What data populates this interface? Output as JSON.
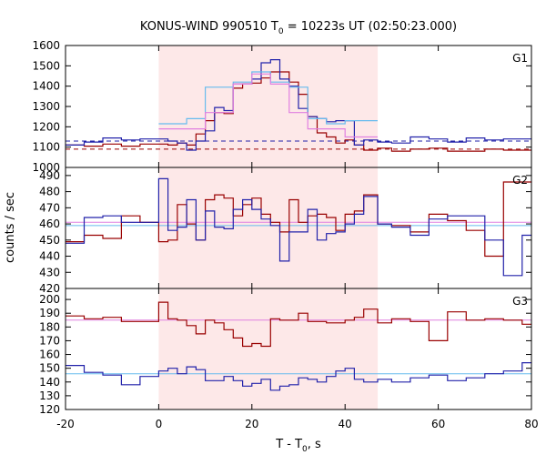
{
  "chart_data": {
    "type": "line",
    "title": "KONUS-WIND 990510 T",
    "title_sub": "0",
    "title_rest": " = 10223s UT (02:50:23.000)",
    "xlabel": "T - T",
    "xlabel_sub": "0",
    "xlabel_rest": ", s",
    "ylabel": "counts / sec",
    "xlim": [
      -20,
      80
    ],
    "x_ticks": [
      -20,
      0,
      20,
      40,
      60,
      80
    ],
    "shaded_interval": [
      0,
      47
    ],
    "colors": {
      "shade": "#fde8e8",
      "dark_red": "#990000",
      "blue": "#2222aa",
      "light_blue": "#66bbee",
      "pink": "#e080e0"
    },
    "bin_edges": [
      -20,
      -16,
      -12,
      -8,
      -4,
      0,
      2,
      4,
      6,
      8,
      10,
      12,
      14,
      16,
      18,
      20,
      22,
      24,
      26,
      28,
      30,
      32,
      34,
      36,
      38,
      40,
      42,
      44,
      47,
      50,
      54,
      58,
      62,
      66,
      70,
      74,
      78,
      80
    ],
    "panels": [
      {
        "label": "G1",
        "ylim": [
          1000,
          1600
        ],
        "y_ticks": [
          1000,
          1100,
          1200,
          1300,
          1400,
          1500,
          1600
        ],
        "series": [
          {
            "color": "dark_red",
            "values": [
              1110,
              1105,
              1115,
              1105,
              1115,
              1115,
              1110,
              1120,
              1110,
              1165,
              1230,
              1270,
              1265,
              1390,
              1410,
              1415,
              1440,
              1470,
              1470,
              1420,
              1360,
              1250,
              1170,
              1150,
              1120,
              1135,
              1110,
              1085,
              1095,
              1080,
              1090,
              1095,
              1080,
              1080,
              1090,
              1085,
              1085
            ]
          },
          {
            "color": "blue",
            "values": [
              1110,
              1125,
              1145,
              1135,
              1140,
              1140,
              1130,
              1120,
              1085,
              1130,
              1180,
              1295,
              1280,
              1410,
              1410,
              1435,
              1515,
              1530,
              1435,
              1400,
              1290,
              1250,
              1240,
              1225,
              1230,
              1230,
              1110,
              1135,
              1125,
              1120,
              1150,
              1140,
              1125,
              1145,
              1135,
              1140,
              1140
            ]
          },
          {
            "color": "light_blue",
            "values": [
              null,
              null,
              null,
              null,
              null,
              1215,
              1215,
              1215,
              1240,
              1240,
              1395,
              1395,
              1395,
              1420,
              1420,
              1470,
              1470,
              1420,
              1420,
              1395,
              1395,
              1240,
              1240,
              1215,
              1215,
              1230,
              1230,
              1230,
              null,
              null,
              null,
              null,
              null,
              null,
              null,
              null,
              null
            ]
          },
          {
            "color": "pink",
            "values": [
              null,
              null,
              null,
              null,
              null,
              1190,
              1190,
              1190,
              1190,
              1190,
              1270,
              1270,
              1270,
              1410,
              1410,
              1460,
              1460,
              1410,
              1410,
              1270,
              1270,
              1190,
              1190,
              1190,
              1190,
              1150,
              1150,
              1150,
              null,
              null,
              null,
              null,
              null,
              null,
              null,
              null,
              null
            ]
          }
        ],
        "background_levels": [
          {
            "color": "blue",
            "value": 1130
          },
          {
            "color": "dark_red",
            "value": 1090
          }
        ]
      },
      {
        "label": "G2",
        "ylim": [
          420,
          495
        ],
        "y_ticks": [
          420,
          430,
          440,
          450,
          460,
          470,
          480,
          490
        ],
        "series": [
          {
            "color": "dark_red",
            "values": [
              449,
              453,
              451,
              465,
              461,
              449,
              450,
              472,
              460,
              450,
              475,
              478,
              476,
              465,
              472,
              476,
              466,
              461,
              455,
              475,
              461,
              465,
              466,
              464,
              456,
              466,
              468,
              478,
              460,
              459,
              455,
              466,
              462,
              456,
              440,
              486,
              486
            ]
          },
          {
            "color": "blue",
            "values": [
              448,
              464,
              465,
              461,
              461,
              488,
              456,
              458,
              475,
              450,
              468,
              458,
              457,
              469,
              475,
              469,
              463,
              459,
              437,
              455,
              455,
              469,
              450,
              454,
              455,
              460,
              466,
              477,
              460,
              458,
              453,
              463,
              465,
              465,
              450,
              428,
              453
            ]
          }
        ],
        "background_levels": [
          {
            "color": "pink",
            "value": 461
          },
          {
            "color": "light_blue",
            "value": 459
          }
        ]
      },
      {
        "label": "G3",
        "ylim": [
          120,
          208
        ],
        "y_ticks": [
          120,
          130,
          140,
          150,
          160,
          170,
          180,
          190,
          200
        ],
        "series": [
          {
            "color": "dark_red",
            "values": [
              188,
              186,
              187,
              184,
              184,
              198,
              186,
              185,
              181,
              175,
              185,
              183,
              178,
              172,
              166,
              168,
              166,
              186,
              185,
              185,
              190,
              184,
              184,
              183,
              183,
              185,
              187,
              193,
              183,
              186,
              184,
              170,
              191,
              185,
              186,
              185,
              182
            ]
          },
          {
            "color": "blue",
            "values": [
              152,
              147,
              145,
              138,
              144,
              148,
              150,
              146,
              151,
              149,
              141,
              141,
              144,
              141,
              137,
              139,
              142,
              134,
              137,
              138,
              143,
              142,
              140,
              144,
              148,
              150,
              142,
              140,
              142,
              140,
              143,
              145,
              141,
              143,
              146,
              148,
              154
            ]
          }
        ],
        "background_levels": [
          {
            "color": "pink",
            "value": 185
          },
          {
            "color": "light_blue",
            "value": 146
          }
        ]
      }
    ]
  }
}
